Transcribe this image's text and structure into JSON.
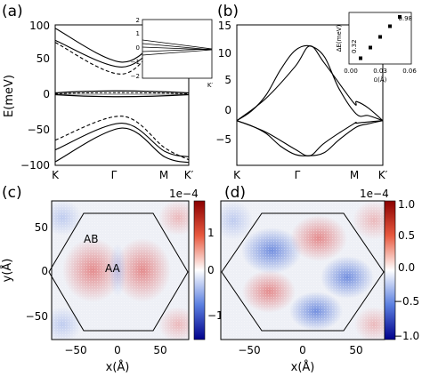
{
  "chart_data": [
    {
      "id": "a",
      "type": "line",
      "panel_label": "(a)",
      "ylabel": "E(meV)",
      "ylim": [
        -100,
        100
      ],
      "yticks": [
        "100",
        "50",
        "0",
        "−50",
        "−100"
      ],
      "xticks": [
        "K",
        "Γ",
        "M",
        "K′"
      ],
      "series": [
        {
          "style": "solid",
          "x": [
            0,
            0.5,
            0.82,
            1
          ],
          "y": [
            95,
            47,
            88,
            96
          ]
        },
        {
          "style": "solid",
          "x": [
            0,
            0.5,
            0.82,
            1
          ],
          "y": [
            78,
            40,
            80,
            88
          ]
        },
        {
          "style": "dashed",
          "x": [
            0,
            0.5,
            0.82,
            1
          ],
          "y": [
            75,
            30,
            84,
            92
          ]
        },
        {
          "style": "solid",
          "x": [
            0,
            0.5,
            0.82,
            1
          ],
          "y": [
            -95,
            -47,
            -88,
            -96
          ]
        },
        {
          "style": "solid",
          "x": [
            0,
            0.5,
            0.82,
            1
          ],
          "y": [
            -78,
            -40,
            -80,
            -88
          ]
        },
        {
          "style": "dashed",
          "x": [
            0,
            0.5,
            0.82,
            1
          ],
          "y": [
            -64,
            -30,
            -75,
            -92
          ]
        }
      ],
      "inset": {
        "yticks": [
          "2",
          "1",
          "0",
          "−1",
          "−2"
        ],
        "xlabel": "K′"
      }
    },
    {
      "id": "b",
      "type": "line",
      "panel_label": "(b)",
      "ylim": [
        -7,
        15
      ],
      "yticks": [
        "15",
        "10",
        "5",
        "0",
        "−5"
      ],
      "xticks": [
        "K",
        "Γ",
        "M",
        "K′"
      ],
      "series": [
        {
          "x": [
            0,
            0.1,
            0.2,
            0.3,
            0.4,
            0.5,
            0.6,
            0.7,
            0.82,
            0.9,
            1
          ],
          "y": [
            0,
            1.5,
            4,
            8,
            11,
            11.7,
            10,
            5,
            1,
            0.8,
            0
          ]
        },
        {
          "x": [
            0,
            0.1,
            0.2,
            0.3,
            0.4,
            0.5,
            0.6,
            0.7,
            0.82,
            0.9,
            1
          ],
          "y": [
            0,
            -0.8,
            -2,
            -4,
            -5.3,
            -5.5,
            -5,
            -3,
            -1,
            -0.5,
            0
          ]
        },
        {
          "x": [
            0,
            0.2,
            0.4,
            0.5,
            0.6,
            0.8,
            0.82,
            0.9,
            1
          ],
          "y": [
            0,
            3.5,
            8.5,
            11.7,
            9,
            2.8,
            3,
            2,
            0
          ]
        },
        {
          "x": [
            0,
            0.2,
            0.4,
            0.5,
            0.6,
            0.8,
            0.82,
            0.9,
            1
          ],
          "y": [
            0,
            -1.8,
            -4.5,
            -5.5,
            -3.5,
            -0.5,
            -0.4,
            -0.2,
            0
          ]
        }
      ],
      "inset": {
        "type": "scatter",
        "ylabel": "ΔE(meV)",
        "xlabel": "ū(Å)",
        "x": [
          0.01,
          0.02,
          0.03,
          0.04,
          0.05
        ],
        "y": [
          0.34,
          0.5,
          0.66,
          0.82,
          0.96
        ],
        "xticks": [
          "0.00",
          "0.03",
          "0.06"
        ],
        "yticks": [
          "0.98",
          "0.32"
        ]
      }
    },
    {
      "id": "c",
      "type": "heatmap",
      "panel_label": "(c)",
      "xlabel": "x(Å)",
      "ylabel": "y(Å)",
      "xlim": [
        -80,
        80
      ],
      "ylim": [
        -80,
        80
      ],
      "xticks": [
        "−50",
        "0",
        "50"
      ],
      "yticks": [
        "50",
        "0",
        "−50"
      ],
      "colorbar": {
        "scale_label": "1e−4",
        "ticks": [
          "1",
          "0",
          "−1"
        ],
        "range": [
          -1.6,
          1.6
        ]
      },
      "annotations": [
        "AB",
        "AA"
      ]
    },
    {
      "id": "d",
      "type": "heatmap",
      "panel_label": "(d)",
      "xlabel": "x(Å)",
      "xlim": [
        -80,
        80
      ],
      "ylim": [
        -80,
        80
      ],
      "xticks": [
        "−50",
        "0",
        "50"
      ],
      "colorbar": {
        "scale_label": "1e−4",
        "ticks": [
          "1.0",
          "0.5",
          "0.0",
          "−0.5",
          "−1.0"
        ],
        "range": [
          -1.1,
          1.1
        ]
      }
    }
  ]
}
